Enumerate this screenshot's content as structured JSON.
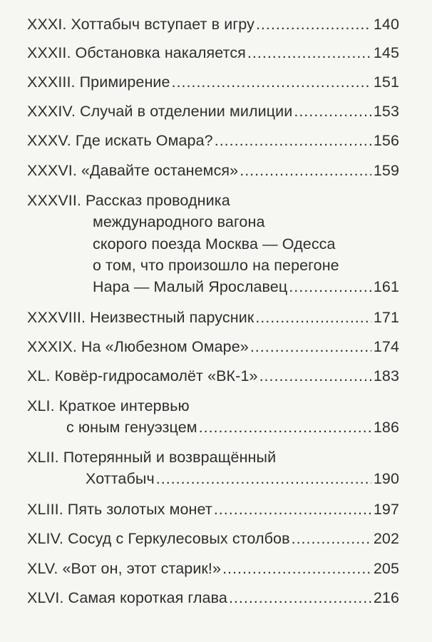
{
  "toc": [
    {
      "num": "XXXI.",
      "lines": [
        "Хоттабыч вступает в игру"
      ],
      "page": "140"
    },
    {
      "num": "XXXII.",
      "lines": [
        "Обстановка накаляется"
      ],
      "page": "145"
    },
    {
      "num": "XXXIII.",
      "lines": [
        "Примирение"
      ],
      "page": "151"
    },
    {
      "num": "XXXIV.",
      "lines": [
        "Случай в отделении милиции"
      ],
      "page": "153"
    },
    {
      "num": "XXXV.",
      "lines": [
        "Где искать Омара?"
      ],
      "page": "156"
    },
    {
      "num": "XXXVI.",
      "lines": [
        "«Давайте останемся»"
      ],
      "page": "159"
    },
    {
      "num": "XXXVII.",
      "lines": [
        "Рассказ проводника",
        "международного вагона",
        "скорого поезда Москва — Одесса",
        "о том, что произошло на перегоне",
        "Нара — Малый Ярославец"
      ],
      "page": "161"
    },
    {
      "num": "XXXVIII.",
      "lines": [
        "Неизвестный парусник"
      ],
      "page": "171"
    },
    {
      "num": "XXXIX.",
      "lines": [
        "На «Любезном Омаре»"
      ],
      "page": "174"
    },
    {
      "num": "XL.",
      "lines": [
        "Ковёр-гидросамолёт «ВК-1»"
      ],
      "page": "183"
    },
    {
      "num": "XLI.",
      "lines": [
        "Краткое интервью",
        "с юным генуэзцем"
      ],
      "page": "186"
    },
    {
      "num": "XLII.",
      "lines": [
        "Потерянный и возвращённый",
        "Хоттабыч"
      ],
      "page": "190"
    },
    {
      "num": "XLIII.",
      "lines": [
        "Пять золотых монет"
      ],
      "page": "197"
    },
    {
      "num": "XLIV.",
      "lines": [
        "Сосуд с Геркулесовых столбов"
      ],
      "page": "202"
    },
    {
      "num": "XLV.",
      "lines": [
        "«Вот он, этот старик!»"
      ],
      "page": "205"
    },
    {
      "num": "XLVI.",
      "lines": [
        "Самая короткая глава"
      ],
      "page": "216"
    }
  ]
}
